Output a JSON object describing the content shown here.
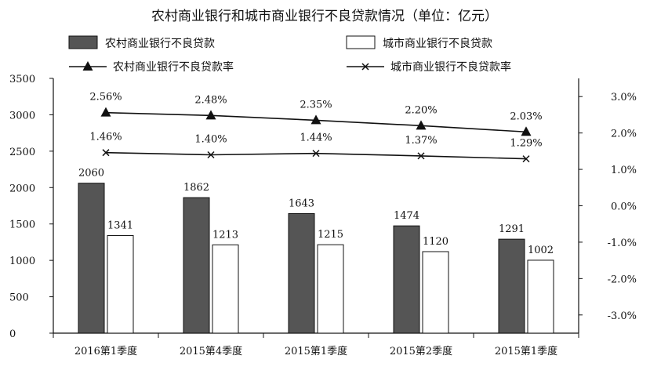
{
  "chart_data": {
    "type": "bar",
    "title": "农村商业银行和城市商业银行不良贷款情况（单位：亿元）",
    "categories": [
      "2016第1季度",
      "2015第4季度",
      "2015第1季度",
      "2015第2季度",
      "2015第1季度"
    ],
    "series": [
      {
        "name": "农村商业银行不良贷款",
        "kind": "bar",
        "values": [
          2060,
          1862,
          1643,
          1474,
          1291
        ],
        "labels": [
          "2060",
          "1862",
          "1643",
          "1474",
          "1291"
        ],
        "color": "#555555"
      },
      {
        "name": "城市商业银行不良贷款",
        "kind": "bar",
        "values": [
          1341,
          1213,
          1215,
          1120,
          1002
        ],
        "labels": [
          "1341",
          "1213",
          "1215",
          "1120",
          "1002"
        ],
        "color": "#ffffff"
      },
      {
        "name": "农村商业银行不良贷款率",
        "kind": "line",
        "marker": "triangle",
        "axis": "right",
        "values": [
          2.56,
          2.48,
          2.35,
          2.2,
          2.03
        ],
        "labels": [
          "2.56%",
          "2.48%",
          "2.35%",
          "2.20%",
          "2.03%"
        ],
        "color": "#111111"
      },
      {
        "name": "城市商业银行不良贷款率",
        "kind": "line",
        "marker": "x",
        "axis": "right",
        "values": [
          1.46,
          1.4,
          1.44,
          1.37,
          1.29
        ],
        "labels": [
          "1.46%",
          "1.40%",
          "1.44%",
          "1.37%",
          "1.29%"
        ],
        "color": "#111111"
      }
    ],
    "left_axis": {
      "range": [
        0,
        3500
      ],
      "ticks": [
        0,
        500,
        1000,
        1500,
        2000,
        2500,
        3000,
        3500
      ],
      "tick_labels": [
        "0",
        "500",
        "1000",
        "1500",
        "2000",
        "2500",
        "3000",
        "3500"
      ]
    },
    "right_axis": {
      "range": [
        -3.5,
        3.5
      ],
      "ticks": [
        3.0,
        2.0,
        1.0,
        0.0,
        -1.0,
        -2.0,
        -3.0
      ],
      "tick_labels": [
        "3.0%",
        "2.0%",
        "1.0%",
        "0.0%",
        "-1.0%",
        "-2.0%",
        "-3.0%"
      ]
    },
    "grid": false,
    "legend_position": "top"
  }
}
